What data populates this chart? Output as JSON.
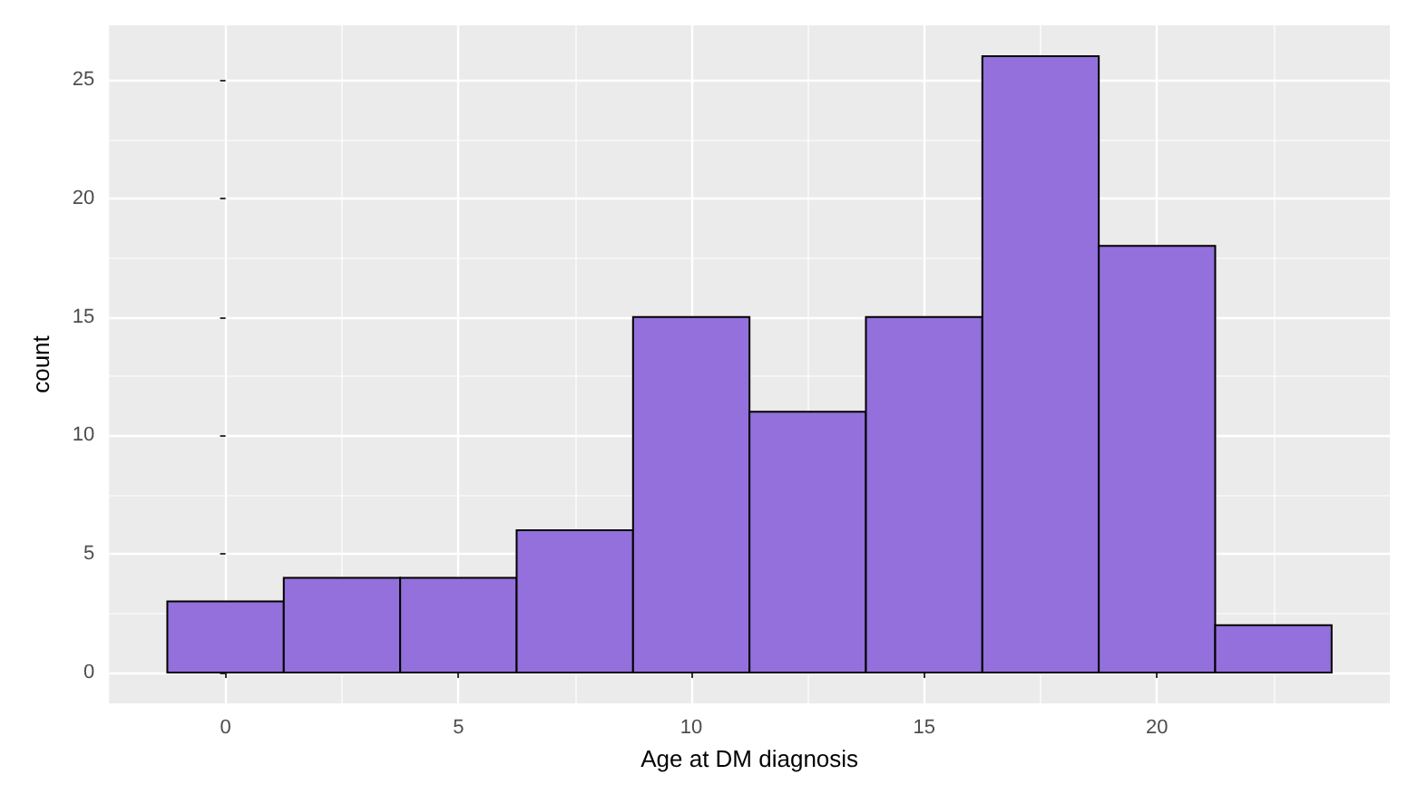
{
  "chart_data": {
    "type": "histogram",
    "xlabel": "Age at DM diagnosis",
    "ylabel": "count",
    "bins": [
      -1.25,
      1.25,
      3.75,
      6.25,
      8.75,
      11.25,
      13.75,
      16.25,
      18.75,
      21.25,
      23.75
    ],
    "values": [
      3,
      4,
      4,
      6,
      15,
      11,
      15,
      26,
      18,
      2
    ],
    "color": "#9370db",
    "xlim": [
      -2.5,
      25
    ],
    "ylim": [
      -1.3,
      27.3
    ],
    "xticks": [
      0,
      5,
      10,
      15,
      20
    ],
    "yticks": [
      0,
      5,
      10,
      15,
      20,
      25
    ],
    "grid": true
  }
}
